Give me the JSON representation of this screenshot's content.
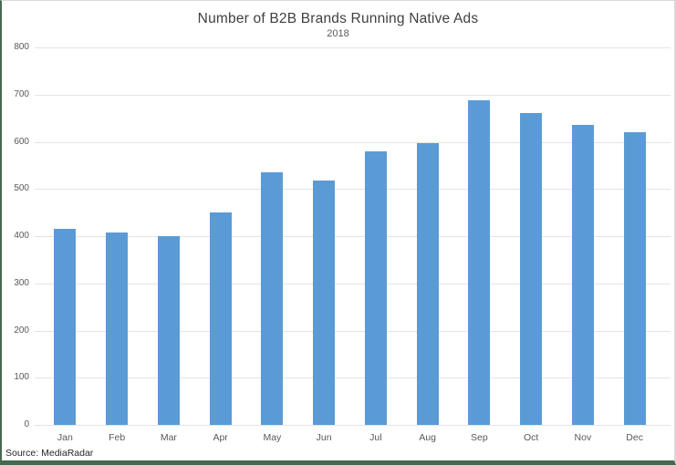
{
  "chart_data": {
    "type": "bar",
    "title": "Number of B2B Brands Running Native Ads",
    "subtitle": "2018",
    "categories": [
      "Jan",
      "Feb",
      "Mar",
      "Apr",
      "May",
      "Jun",
      "Jul",
      "Aug",
      "Sep",
      "Oct",
      "Nov",
      "Dec"
    ],
    "values": [
      415,
      408,
      400,
      450,
      535,
      517,
      580,
      597,
      687,
      660,
      635,
      620
    ],
    "xlabel": "",
    "ylabel": "",
    "ylim": [
      0,
      800
    ],
    "ytick_step": 100,
    "grid": true,
    "legend": "none",
    "bar_color": "#5b9bd5",
    "gridline_color": "#e4e4e4",
    "axis_text_color": "#595959",
    "title_color": "#404040",
    "frame_border_green": "#44694e",
    "frame_border_gray": "#d9d9d9"
  },
  "source": {
    "label": "Source: MediaRadar"
  }
}
